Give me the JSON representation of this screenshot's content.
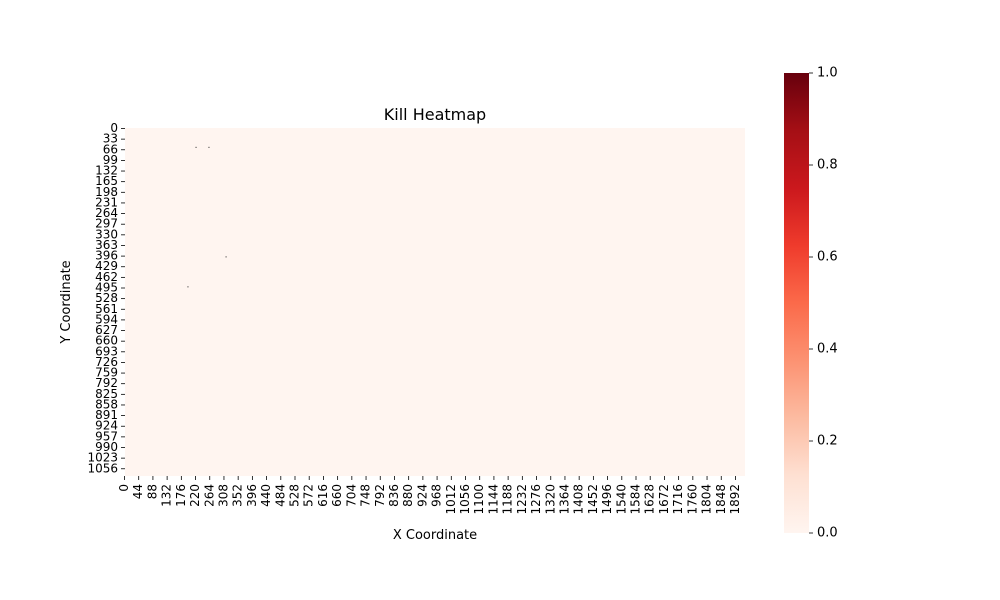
{
  "chart_data": {
    "type": "heatmap",
    "title": "Kill Heatmap",
    "xlabel": "X Coordinate",
    "ylabel": "Y Coordinate",
    "x_range": [
      0,
      1920
    ],
    "y_range": [
      0,
      1080
    ],
    "x_ticks": [
      "0",
      "44",
      "88",
      "132",
      "176",
      "220",
      "264",
      "308",
      "352",
      "396",
      "440",
      "484",
      "528",
      "572",
      "616",
      "660",
      "704",
      "748",
      "792",
      "836",
      "880",
      "924",
      "968",
      "1012",
      "1056",
      "1100",
      "1144",
      "1188",
      "1232",
      "1276",
      "1320",
      "1364",
      "1408",
      "1452",
      "1496",
      "1540",
      "1584",
      "1628",
      "1672",
      "1716",
      "1760",
      "1804",
      "1848",
      "1892"
    ],
    "y_ticks": [
      "0",
      "33",
      "66",
      "99",
      "132",
      "165",
      "198",
      "231",
      "264",
      "297",
      "330",
      "363",
      "396",
      "429",
      "462",
      "495",
      "528",
      "561",
      "594",
      "627",
      "660",
      "693",
      "726",
      "759",
      "792",
      "825",
      "858",
      "891",
      "924",
      "957",
      "990",
      "1023",
      "1056"
    ],
    "colorbar": {
      "min": 0.0,
      "max": 1.0,
      "ticks": [
        "0.0",
        "0.2",
        "0.4",
        "0.6",
        "0.8",
        "1.0"
      ],
      "colormap": "Reds",
      "low_color": "#fff5f0",
      "high_color": "#67000d"
    },
    "points": [
      {
        "x": 220,
        "y": 60,
        "value": 1.0
      },
      {
        "x": 260,
        "y": 60,
        "value": 1.0
      },
      {
        "x": 313,
        "y": 400,
        "value": 1.0
      },
      {
        "x": 195,
        "y": 493,
        "value": 1.0
      }
    ],
    "legend": "right",
    "grid": false
  }
}
